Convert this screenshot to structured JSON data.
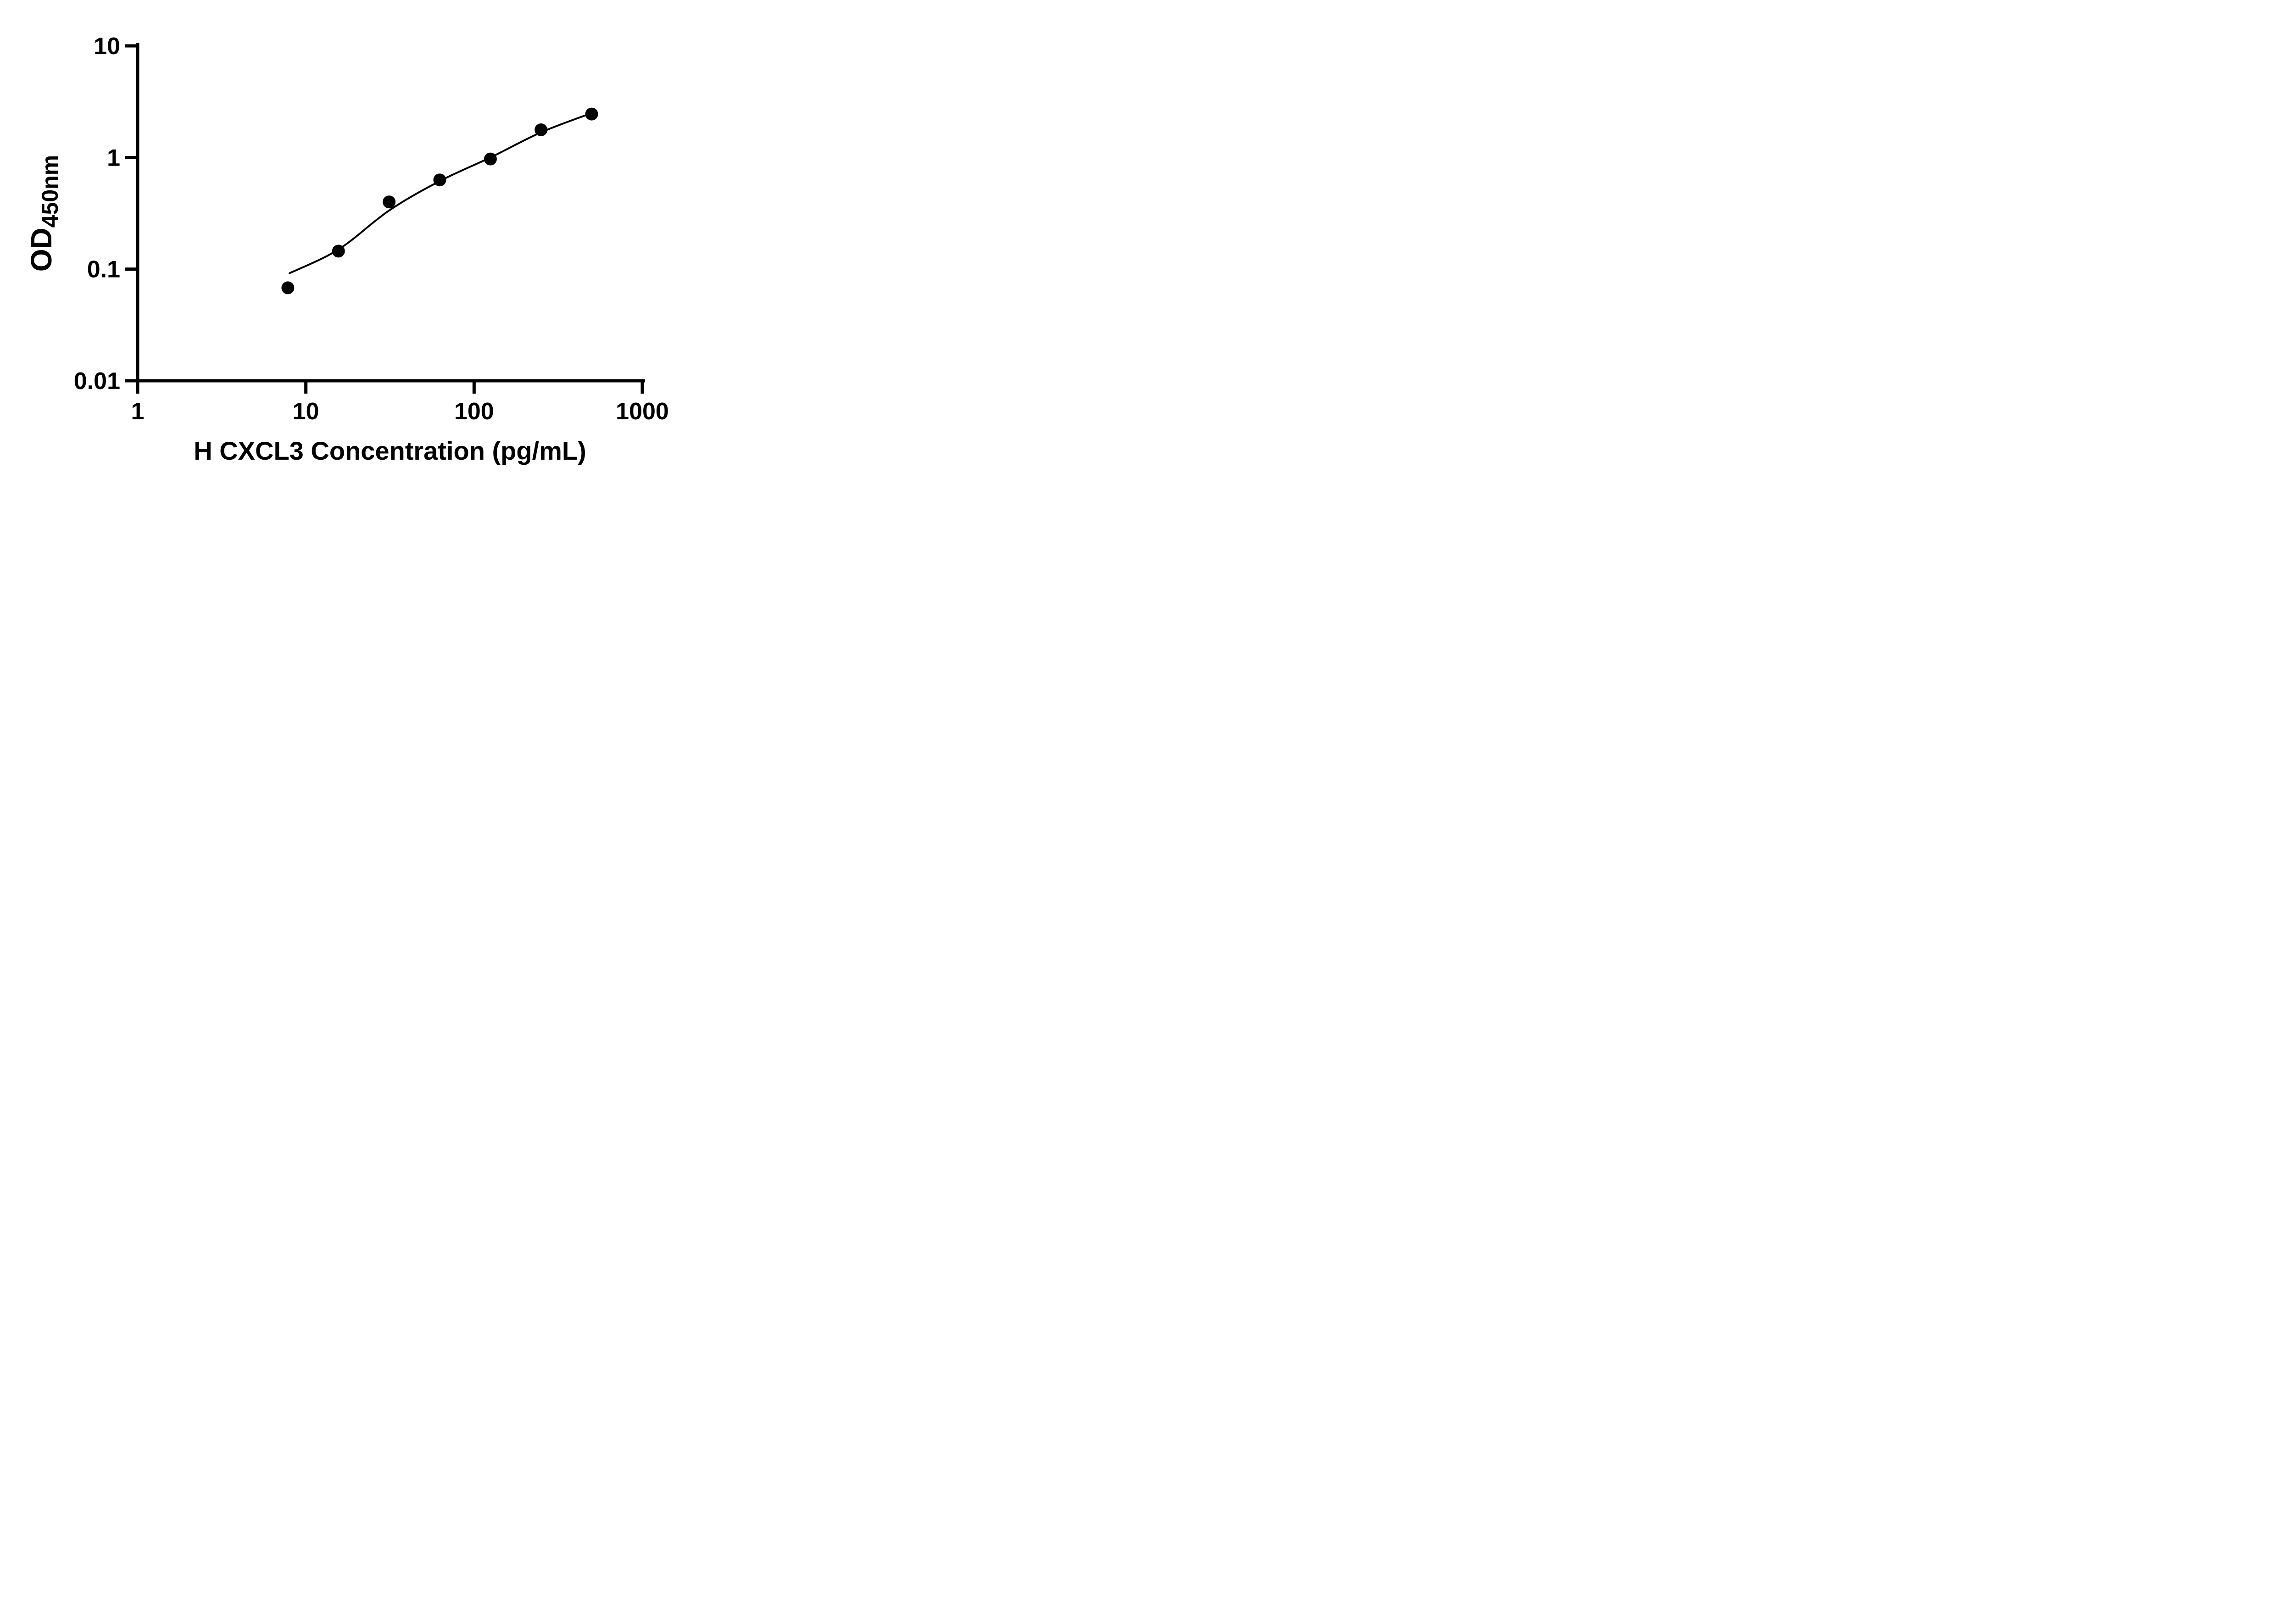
{
  "figure": {
    "background": "#ffffff"
  },
  "chart_data": {
    "type": "scatter",
    "title": "",
    "xlabel": "H CXCL3 Concentration (pg/mL)",
    "ylabel": {
      "main": "OD",
      "sub": "450nm"
    },
    "x_scale": "log",
    "y_scale": "log",
    "xlim": [
      1,
      1000
    ],
    "ylim": [
      0.01,
      10
    ],
    "x_ticks": [
      1,
      10,
      100,
      1000
    ],
    "x_tick_labels": [
      "1",
      "10",
      "100",
      "1000"
    ],
    "y_ticks": [
      0.01,
      0.1,
      1,
      10
    ],
    "y_tick_labels": [
      "0.01",
      "0.1",
      "1",
      "10"
    ],
    "grid": false,
    "legend": null,
    "colors": {
      "foreground": "#000000",
      "background": "#ffffff"
    },
    "series": [
      {
        "name": "fitted-curve",
        "type": "line",
        "color": "#000000",
        "points": [
          {
            "x": 8.0,
            "y": 0.092
          },
          {
            "x": 15.625,
            "y": 0.15
          },
          {
            "x": 31.25,
            "y": 0.335
          },
          {
            "x": 62.5,
            "y": 0.615
          },
          {
            "x": 125,
            "y": 1.0
          },
          {
            "x": 250,
            "y": 1.68
          },
          {
            "x": 500,
            "y": 2.5
          }
        ]
      },
      {
        "name": "standard-points",
        "type": "scatter",
        "marker": "filled-circle",
        "color": "#000000",
        "points": [
          {
            "x": 7.8125,
            "y": 0.068
          },
          {
            "x": 15.625,
            "y": 0.145
          },
          {
            "x": 31.25,
            "y": 0.4
          },
          {
            "x": 62.5,
            "y": 0.63
          },
          {
            "x": 125,
            "y": 0.97
          },
          {
            "x": 250,
            "y": 1.77
          },
          {
            "x": 500,
            "y": 2.45
          }
        ]
      }
    ]
  }
}
